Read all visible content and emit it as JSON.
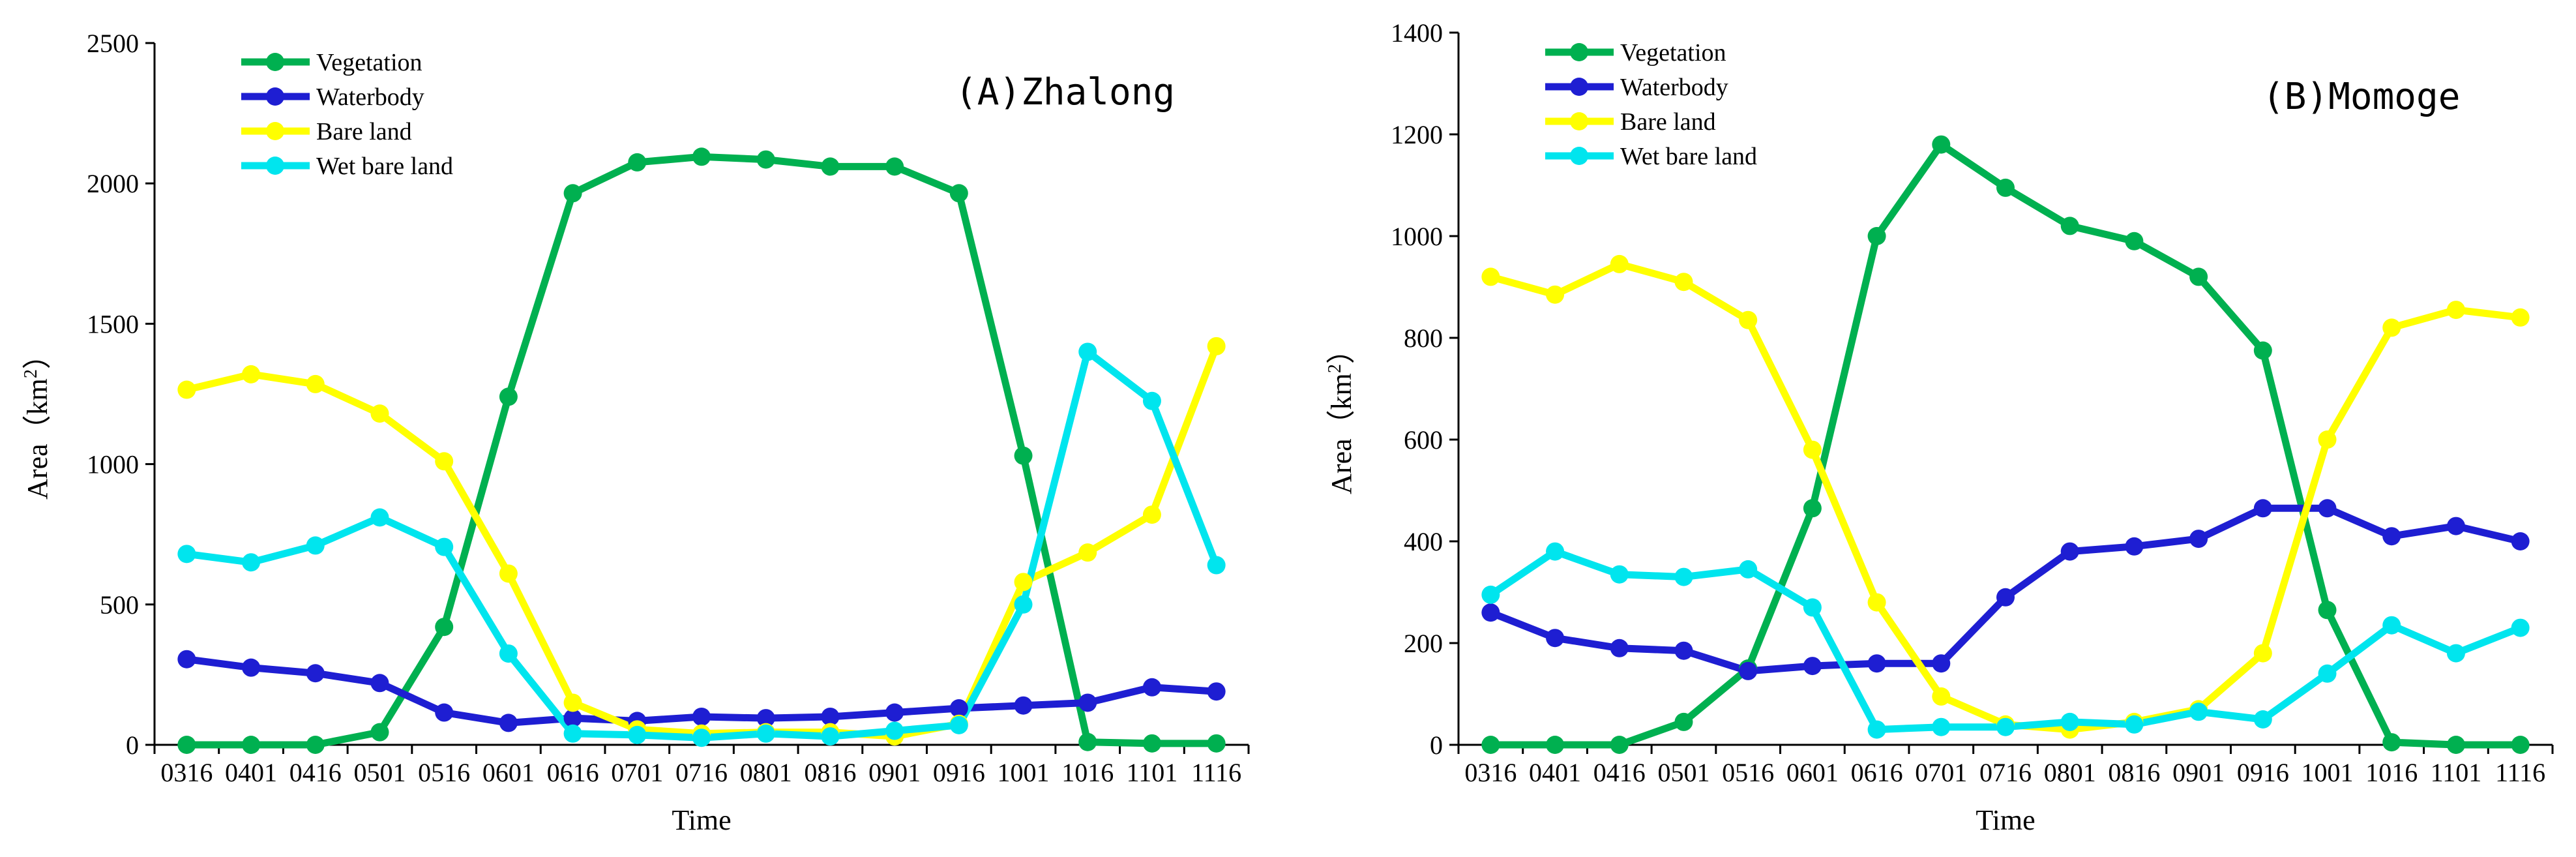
{
  "chart_data": [
    {
      "type": "line",
      "title": "(A)Zhalong",
      "xlabel": "Time",
      "ylabel": "Area（km²）",
      "ylabel_main": "Area（km",
      "ylabel_sup": "2",
      "ylabel_tail": "）",
      "ylim": [
        0,
        2500
      ],
      "yticks": [
        0,
        500,
        1000,
        1500,
        2000,
        2500
      ],
      "categories": [
        "0316",
        "0401",
        "0416",
        "0501",
        "0516",
        "0601",
        "0616",
        "0701",
        "0716",
        "0801",
        "0816",
        "0901",
        "0916",
        "1001",
        "1016",
        "1101",
        "1116"
      ],
      "legend_position": "top-left",
      "series": [
        {
          "name": "Vegetation",
          "color": "#00b050",
          "values": [
            0,
            0,
            0,
            45,
            420,
            1240,
            1965,
            2075,
            2095,
            2085,
            2060,
            2060,
            1965,
            1030,
            10,
            5,
            5
          ]
        },
        {
          "name": "Waterbody",
          "color": "#1e1ed2",
          "values": [
            305,
            275,
            255,
            220,
            115,
            78,
            95,
            85,
            100,
            95,
            100,
            115,
            130,
            140,
            150,
            205,
            190
          ]
        },
        {
          "name": "Bare land",
          "color": "#ffff00",
          "values": [
            1265,
            1320,
            1285,
            1180,
            1010,
            610,
            150,
            55,
            40,
            45,
            45,
            30,
            75,
            580,
            685,
            820,
            1420
          ]
        },
        {
          "name": "Wet bare land",
          "color": "#00e5ee",
          "values": [
            680,
            650,
            710,
            810,
            705,
            325,
            40,
            35,
            25,
            40,
            30,
            50,
            70,
            500,
            1400,
            1225,
            640
          ]
        }
      ]
    },
    {
      "type": "line",
      "title": "(B)Momoge",
      "xlabel": "Time",
      "ylabel": "Area（km²）",
      "ylabel_main": "Area（km",
      "ylabel_sup": "2",
      "ylabel_tail": "）",
      "ylim": [
        0,
        1400
      ],
      "yticks": [
        0,
        200,
        400,
        600,
        800,
        1000,
        1200,
        1400
      ],
      "categories": [
        "0316",
        "0401",
        "0416",
        "0501",
        "0516",
        "0601",
        "0616",
        "0701",
        "0716",
        "0801",
        "0816",
        "0901",
        "0916",
        "1001",
        "1016",
        "1101",
        "1116"
      ],
      "legend_position": "top-left",
      "series": [
        {
          "name": "Vegetation",
          "color": "#00b050",
          "values": [
            0,
            0,
            0,
            45,
            150,
            465,
            1000,
            1180,
            1095,
            1020,
            990,
            920,
            775,
            265,
            5,
            0,
            0
          ]
        },
        {
          "name": "Waterbody",
          "color": "#1e1ed2",
          "values": [
            260,
            210,
            190,
            185,
            145,
            155,
            160,
            160,
            290,
            380,
            390,
            405,
            465,
            465,
            410,
            430,
            400
          ]
        },
        {
          "name": "Bare land",
          "color": "#ffff00",
          "values": [
            920,
            885,
            945,
            910,
            835,
            580,
            280,
            95,
            40,
            30,
            45,
            70,
            180,
            600,
            820,
            855,
            840
          ]
        },
        {
          "name": "Wet bare land",
          "color": "#00e5ee",
          "values": [
            295,
            380,
            335,
            330,
            345,
            270,
            30,
            35,
            35,
            45,
            40,
            65,
            50,
            140,
            235,
            180,
            230
          ]
        }
      ]
    }
  ]
}
